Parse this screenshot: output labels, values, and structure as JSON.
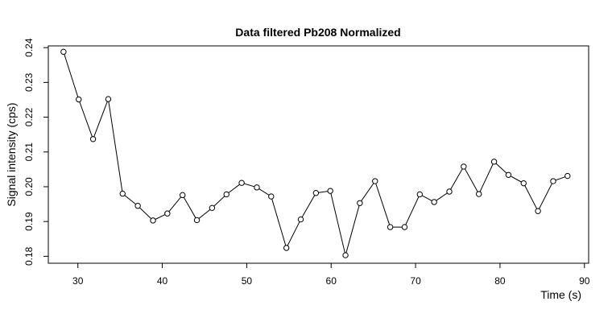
{
  "chart_data": {
    "type": "line",
    "title": "Data filtered Pb208 Normalized",
    "xlabel": "Time (s)",
    "ylabel": "Signal intensity (cps)",
    "xlim": [
      26.5,
      90.5
    ],
    "ylim": [
      0.178,
      0.2405
    ],
    "x_ticks": [
      30,
      40,
      50,
      60,
      70,
      80,
      90
    ],
    "y_ticks": [
      0.18,
      0.19,
      0.2,
      0.21,
      0.22,
      0.23,
      0.24
    ],
    "y_tick_labels": [
      "0.18",
      "0.19",
      "0.20",
      "0.21",
      "0.22",
      "0.23",
      "0.24"
    ],
    "grid": false,
    "marker": "open-circle",
    "series": [
      {
        "x": [
          28.3,
          30.1,
          31.8,
          33.6,
          35.3,
          37.1,
          38.9,
          40.6,
          42.4,
          44.1,
          45.9,
          47.6,
          49.4,
          51.2,
          52.9,
          54.7,
          56.4,
          58.2,
          59.9,
          61.7,
          63.4,
          65.2,
          67.0,
          68.7,
          70.5,
          72.2,
          74.0,
          75.7,
          77.5,
          79.3,
          81.0,
          82.8,
          84.5,
          86.3,
          88.0
        ],
        "y": [
          0.2388,
          0.2251,
          0.2137,
          0.2252,
          0.198,
          0.1945,
          0.1903,
          0.1923,
          0.1976,
          0.1904,
          0.1939,
          0.1978,
          0.2011,
          0.1998,
          0.1972,
          0.1824,
          0.1906,
          0.1982,
          0.1988,
          0.1803,
          0.1953,
          0.2016,
          0.1884,
          0.1884,
          0.1978,
          0.1956,
          0.1986,
          0.2058,
          0.1979,
          0.2072,
          0.2034,
          0.201,
          0.193,
          0.2016,
          0.2031
        ]
      }
    ]
  }
}
